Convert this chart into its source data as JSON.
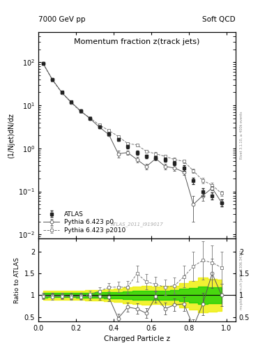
{
  "title": "Momentum fraction z(track jets)",
  "header_left": "7000 GeV pp",
  "header_right": "Soft QCD",
  "ylabel_main": "(1/Njet)dN/dz",
  "ylabel_ratio": "Ratio to ATLAS",
  "xlabel": "Charged Particle z",
  "right_label_top": "Rivet 3.1.10, ≥ 400k events",
  "right_label_bot": "mcplots.cern.ch [arXiv:1306.3436]",
  "watermark": "ATLAS_2011_I919017",
  "atlas_x": [
    0.025,
    0.075,
    0.125,
    0.175,
    0.225,
    0.275,
    0.325,
    0.375,
    0.425,
    0.475,
    0.525,
    0.575,
    0.625,
    0.675,
    0.725,
    0.775,
    0.825,
    0.875,
    0.925,
    0.975
  ],
  "atlas_y": [
    95.0,
    40.0,
    20.0,
    12.0,
    7.5,
    5.0,
    3.2,
    2.2,
    1.6,
    1.1,
    0.8,
    0.65,
    0.6,
    0.55,
    0.45,
    0.35,
    0.18,
    0.1,
    0.08,
    0.055
  ],
  "atlas_yerr": [
    5.0,
    2.0,
    1.0,
    0.6,
    0.4,
    0.3,
    0.2,
    0.15,
    0.12,
    0.1,
    0.08,
    0.07,
    0.06,
    0.06,
    0.05,
    0.05,
    0.03,
    0.02,
    0.015,
    0.01
  ],
  "p0_x": [
    0.025,
    0.075,
    0.125,
    0.175,
    0.225,
    0.275,
    0.325,
    0.375,
    0.425,
    0.475,
    0.525,
    0.575,
    0.625,
    0.675,
    0.725,
    0.775,
    0.825,
    0.875,
    0.925,
    0.975
  ],
  "p0_y": [
    94.0,
    39.5,
    19.8,
    11.8,
    7.4,
    4.9,
    3.1,
    2.1,
    0.75,
    0.8,
    0.55,
    0.38,
    0.58,
    0.38,
    0.35,
    0.28,
    0.05,
    0.08,
    0.12,
    0.055
  ],
  "p0_yerr": [
    4.5,
    1.9,
    1.0,
    0.6,
    0.38,
    0.28,
    0.18,
    0.13,
    0.15,
    0.09,
    0.08,
    0.06,
    0.06,
    0.06,
    0.05,
    0.04,
    0.03,
    0.02,
    0.015,
    0.01
  ],
  "p2010_x": [
    0.025,
    0.075,
    0.125,
    0.175,
    0.225,
    0.275,
    0.325,
    0.375,
    0.425,
    0.475,
    0.525,
    0.575,
    0.625,
    0.675,
    0.725,
    0.775,
    0.825,
    0.875,
    0.925,
    0.975
  ],
  "p2010_y": [
    93.0,
    38.5,
    19.5,
    11.5,
    7.2,
    5.1,
    3.5,
    2.6,
    1.9,
    1.3,
    1.2,
    0.85,
    0.75,
    0.65,
    0.55,
    0.5,
    0.3,
    0.18,
    0.14,
    0.09
  ],
  "p2010_yerr": [
    4.8,
    2.0,
    1.05,
    0.62,
    0.4,
    0.3,
    0.2,
    0.14,
    0.12,
    0.1,
    0.09,
    0.07,
    0.065,
    0.065,
    0.055,
    0.05,
    0.035,
    0.025,
    0.018,
    0.012
  ],
  "ylim_main": [
    0.008,
    500
  ],
  "ylim_ratio": [
    0.4,
    2.3
  ],
  "xlim": [
    0.0,
    1.05
  ],
  "color_atlas": "#222222",
  "color_p0": "#555555",
  "color_p2010": "#777777",
  "color_green": "#00cc00",
  "color_yellow": "#eeee00",
  "yticks_ratio": [
    0.5,
    1.0,
    1.5,
    2.0
  ]
}
